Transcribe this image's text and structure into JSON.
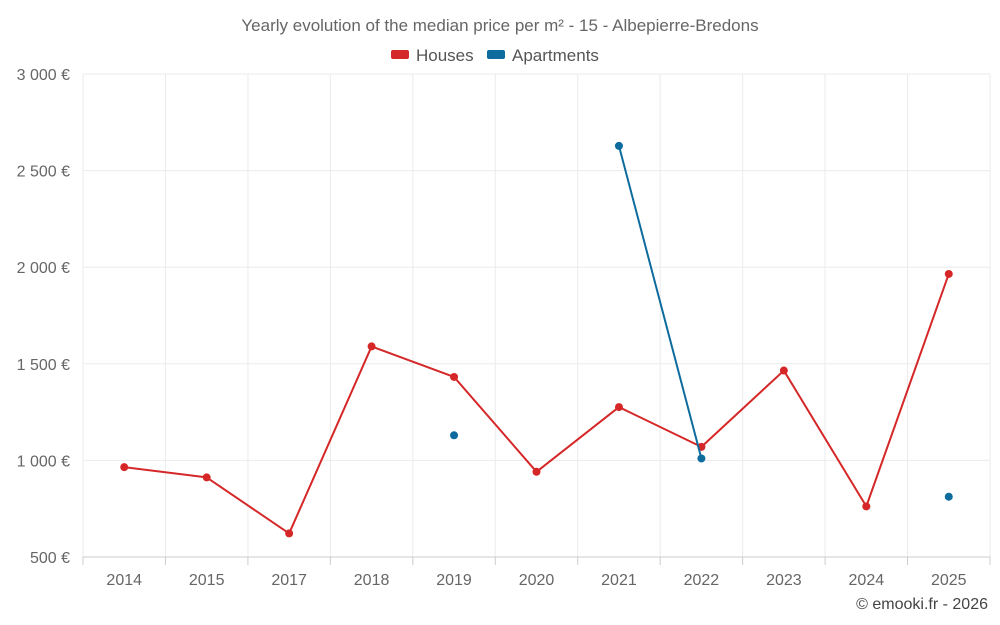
{
  "chart_data": {
    "type": "line",
    "title": "Yearly evolution of the median price per m² - 15 - Albepierre-Bredons",
    "categories": [
      "2014",
      "2015",
      "2017",
      "2018",
      "2019",
      "2020",
      "2021",
      "2022",
      "2023",
      "2024",
      "2025"
    ],
    "y_ticks": [
      "500 €",
      "1 000 €",
      "1 500 €",
      "2 000 €",
      "2 500 €",
      "3 000 €"
    ],
    "ylim": [
      500,
      3000
    ],
    "grid": true,
    "legend_position": "top-center",
    "series": [
      {
        "name": "Houses",
        "color": "#d62728",
        "values": [
          965,
          912,
          622,
          1590,
          1432,
          941,
          1276,
          1070,
          1465,
          762,
          1965
        ]
      },
      {
        "name": "Apartments",
        "color": "#0e6b9e",
        "values": [
          null,
          null,
          null,
          null,
          1130,
          null,
          2628,
          1010,
          null,
          null,
          812
        ]
      }
    ]
  },
  "credit": "© emooki.fr - 2026"
}
